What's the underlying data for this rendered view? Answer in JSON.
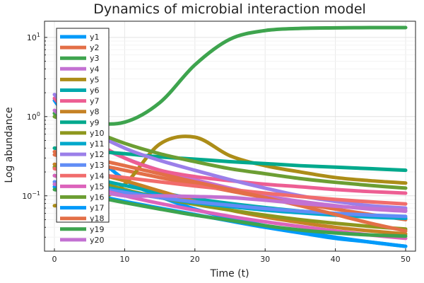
{
  "chart_data": {
    "type": "line",
    "title": "Dynamics of microbial interaction model",
    "xlabel": "Time (t)",
    "ylabel": "Log abundance",
    "xlim": [
      0,
      50
    ],
    "ylim": [
      0.02,
      16
    ],
    "yscale": "log",
    "grid": true,
    "legend_position": "top-left",
    "x_ticks": [
      {
        "v": 0,
        "label": "0"
      },
      {
        "v": 10,
        "label": "10"
      },
      {
        "v": 20,
        "label": "20"
      },
      {
        "v": 30,
        "label": "30"
      },
      {
        "v": 40,
        "label": "40"
      },
      {
        "v": 50,
        "label": "50"
      }
    ],
    "y_ticks": [
      {
        "v": 0.1,
        "base": "10",
        "exp": "−1"
      },
      {
        "v": 1,
        "base": "10",
        "exp": "0"
      },
      {
        "v": 10,
        "base": "10",
        "exp": "1"
      }
    ],
    "x": [
      0,
      5,
      10,
      15,
      20,
      25,
      30,
      35,
      40,
      45,
      50
    ],
    "series": [
      {
        "name": "y1",
        "color": "#009AFA",
        "values": [
          1.6,
          0.4,
          0.16,
          0.098,
          0.068,
          0.052,
          0.042,
          0.035,
          0.03,
          0.026,
          0.023
        ]
      },
      {
        "name": "y2",
        "color": "#E36F47",
        "values": [
          0.33,
          0.26,
          0.21,
          0.17,
          0.14,
          0.115,
          0.095,
          0.08,
          0.068,
          0.058,
          0.05
        ]
      },
      {
        "name": "y3",
        "color": "#3EA44E",
        "values": [
          1.1,
          0.85,
          0.85,
          1.5,
          4.5,
          9.5,
          12.2,
          13.0,
          13.2,
          13.3,
          13.3
        ]
      },
      {
        "name": "y4",
        "color": "#C371D2",
        "values": [
          1.2,
          0.5,
          0.3,
          0.21,
          0.16,
          0.125,
          0.1,
          0.085,
          0.075,
          0.068,
          0.064
        ]
      },
      {
        "name": "y5",
        "color": "#AC8D18",
        "values": [
          0.075,
          0.08,
          0.14,
          0.45,
          0.55,
          0.32,
          0.24,
          0.2,
          0.17,
          0.155,
          0.145
        ]
      },
      {
        "name": "y6",
        "color": "#00A9AD",
        "values": [
          0.23,
          0.17,
          0.135,
          0.11,
          0.092,
          0.08,
          0.071,
          0.064,
          0.059,
          0.055,
          0.052
        ]
      },
      {
        "name": "y7",
        "color": "#ED5E93",
        "values": [
          1.7,
          0.55,
          0.3,
          0.21,
          0.175,
          0.155,
          0.14,
          0.13,
          0.12,
          0.113,
          0.108
        ]
      },
      {
        "name": "y8",
        "color": "#C68225",
        "values": [
          0.25,
          0.2,
          0.155,
          0.115,
          0.085,
          0.066,
          0.054,
          0.046,
          0.04,
          0.036,
          0.033
        ]
      },
      {
        "name": "y9",
        "color": "#00A98D",
        "values": [
          0.4,
          0.37,
          0.34,
          0.31,
          0.29,
          0.27,
          0.255,
          0.24,
          0.23,
          0.22,
          0.21
        ]
      },
      {
        "name": "y10",
        "color": "#8E971D",
        "values": [
          0.23,
          0.16,
          0.12,
          0.095,
          0.078,
          0.066,
          0.057,
          0.05,
          0.045,
          0.041,
          0.038
        ]
      },
      {
        "name": "y11",
        "color": "#00A8CB",
        "values": [
          0.18,
          0.14,
          0.115,
          0.095,
          0.082,
          0.073,
          0.066,
          0.061,
          0.057,
          0.054,
          0.052
        ]
      },
      {
        "name": "y12",
        "color": "#9B7FE9",
        "values": [
          1.9,
          0.7,
          0.4,
          0.28,
          0.21,
          0.16,
          0.125,
          0.1,
          0.085,
          0.075,
          0.07
        ]
      },
      {
        "name": "y13",
        "color": "#618DF6",
        "values": [
          0.15,
          0.13,
          0.11,
          0.095,
          0.084,
          0.076,
          0.069,
          0.064,
          0.06,
          0.057,
          0.055
        ]
      },
      {
        "name": "y14",
        "color": "#F16C6C",
        "values": [
          0.22,
          0.19,
          0.17,
          0.15,
          0.133,
          0.12,
          0.108,
          0.098,
          0.09,
          0.084,
          0.079
        ]
      },
      {
        "name": "y15",
        "color": "#DC63BB",
        "values": [
          0.18,
          0.13,
          0.1,
          0.08,
          0.066,
          0.055,
          0.047,
          0.041,
          0.036,
          0.032,
          0.029
        ]
      },
      {
        "name": "y16",
        "color": "#6C9E33",
        "values": [
          1.0,
          0.68,
          0.46,
          0.34,
          0.27,
          0.22,
          0.19,
          0.165,
          0.148,
          0.135,
          0.125
        ]
      },
      {
        "name": "y17",
        "color": "#009AFA",
        "values": [
          0.13,
          0.105,
          0.085,
          0.07,
          0.058,
          0.048,
          0.04,
          0.034,
          0.029,
          0.026,
          0.023
        ]
      },
      {
        "name": "y18",
        "color": "#E36F47",
        "values": [
          0.36,
          0.3,
          0.24,
          0.19,
          0.15,
          0.12,
          0.095,
          0.075,
          0.058,
          0.045,
          0.036
        ]
      },
      {
        "name": "y19",
        "color": "#3EA44E",
        "values": [
          0.12,
          0.1,
          0.082,
          0.068,
          0.057,
          0.049,
          0.042,
          0.037,
          0.034,
          0.032,
          0.031
        ]
      },
      {
        "name": "y20",
        "color": "#C371D2",
        "values": [
          0.14,
          0.12,
          0.1,
          0.1,
          0.098,
          0.095,
          0.088,
          0.08,
          0.074,
          0.069,
          0.066
        ]
      }
    ]
  }
}
